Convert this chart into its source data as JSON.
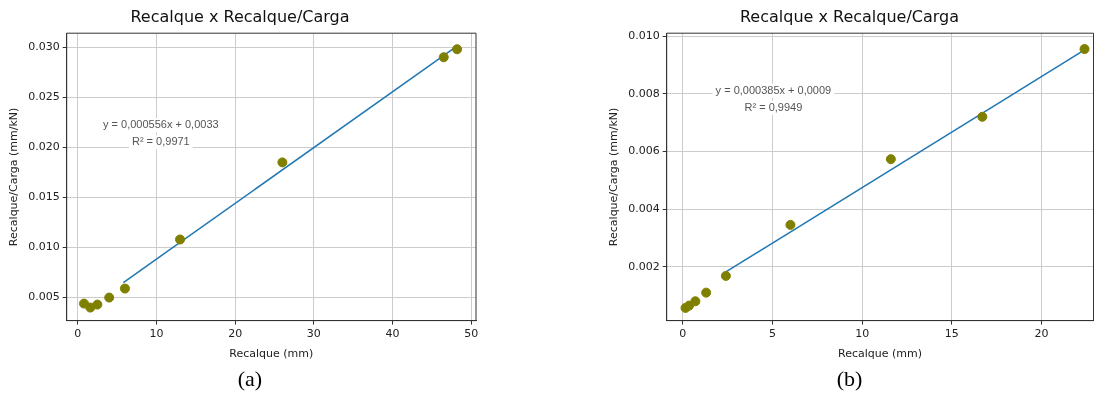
{
  "chart_data": [
    {
      "type": "scatter",
      "title": "Recalque x Recalque/Carga",
      "xlabel": "Recalque (mm)",
      "ylabel": "Recalque/Carga (mm/kN)",
      "xlim": [
        -1.4,
        50.6
      ],
      "xticks": [
        0,
        10,
        20,
        30,
        40,
        50
      ],
      "ylim": [
        0.0027,
        0.0314
      ],
      "yticks": [
        0.005,
        {
          "value": 0.01,
          "label": "0.010"
        },
        0.015,
        {
          "value": 0.02,
          "label": "0.020"
        },
        0.025,
        {
          "value": 0.03,
          "label": "0.030"
        }
      ],
      "grid": true,
      "series": [
        {
          "type": "scatter",
          "marker": "circle",
          "color": "#808000",
          "x": [
            0.8,
            1.6,
            2.5,
            4,
            6,
            13,
            26,
            46.5,
            48.2
          ],
          "values": [
            0.0044,
            0.004,
            0.0043,
            0.005,
            0.0059,
            0.0108,
            0.0185,
            0.029,
            0.0298
          ]
        },
        {
          "type": "line",
          "marker": "none",
          "color": "#1f77b4",
          "x": [
            5.8,
            48
          ],
          "values": [
            0.0065,
            0.03
          ]
        }
      ],
      "annotations": [
        "y = 0,000556x + 0,0033",
        "R² = 0,9971",
        "(a)"
      ]
    },
    {
      "type": "scatter",
      "title": "Recalque x Recalque/Carga",
      "xlabel": "Recalque (mm)",
      "ylabel": "Recalque/Carga (mm/kN)",
      "xlim": [
        -0.9,
        22.9
      ],
      "xticks": [
        0,
        5,
        10,
        15,
        20
      ],
      "ylim": [
        0.00013,
        0.0101
      ],
      "yticks": [
        0.002,
        0.004,
        0.006,
        0.008,
        {
          "value": 0.01,
          "label": "0.010"
        }
      ],
      "grid": true,
      "series": [
        {
          "type": "scatter",
          "marker": "circle",
          "color": "#808000",
          "x": [
            0.15,
            0.35,
            0.7,
            1.3,
            2.4,
            6,
            11.6,
            16.7,
            22.4
          ],
          "values": [
            0.00057,
            0.00065,
            0.0008,
            0.0011,
            0.00168,
            0.00345,
            0.00573,
            0.0072,
            0.00955
          ]
        },
        {
          "type": "line",
          "marker": "none",
          "color": "#1f77b4",
          "x": [
            2.4,
            22.4
          ],
          "values": [
            0.00182,
            0.00952
          ]
        }
      ],
      "annotations": [
        "y = 0,000385x + 0,0009",
        "R² = 0,9949",
        "(b)"
      ]
    }
  ]
}
